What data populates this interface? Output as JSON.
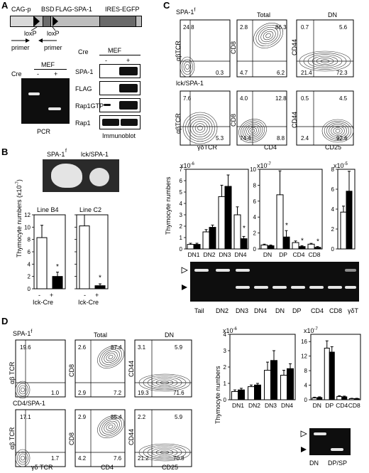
{
  "panelA": {
    "letter": "A",
    "construct": [
      "CAG-p",
      "BSD",
      "FLAG-SPA-1",
      "IRES-EGFP"
    ],
    "loxp": [
      "loxP",
      "loxP"
    ],
    "primer": [
      "primer",
      "primer"
    ],
    "pcr": {
      "header": "MEF",
      "cre_label": "Cre",
      "lanes": [
        "-",
        "+"
      ],
      "caption": "PCR"
    },
    "blot": {
      "header": "MEF",
      "cre_label": "Cre",
      "lanes": [
        "-",
        "+"
      ],
      "rows": [
        "SPA-1",
        "FLAG",
        "Rap1GTP",
        "Rap1"
      ],
      "caption": "Immunoblot"
    }
  },
  "panelB": {
    "letter": "B",
    "photo_labels": [
      "SPA-1",
      "f",
      "lck/SPA-1"
    ],
    "ylabel": "Thymocyte numbers (x10",
    "ylabel_exp": "-7",
    "ylabel_end": ")",
    "xcaption": "Ick-Cre",
    "lanes": [
      "-",
      "+"
    ],
    "star": "*"
  },
  "panelC": {
    "letter": "C",
    "row_labels": [
      "SPA-1",
      "f",
      "lck/SPA-1"
    ],
    "col_titles": [
      "Total",
      "DN"
    ],
    "axes": {
      "y1": "αβTCR",
      "x1": "γδTCR",
      "y2": "CD8",
      "x2": "CD4",
      "y3": "CD44",
      "x3": "CD25"
    },
    "quads": [
      [
        "24.8",
        "0.3"
      ],
      [
        "2.8",
        "86.3",
        "4.7",
        "6.2"
      ],
      [
        "0.7",
        "5.6",
        "21.4",
        "72.3"
      ],
      [
        "7.6",
        "5.3"
      ],
      [
        "4.0",
        "12.8",
        "74.4",
        "8.8"
      ],
      [
        "0.5",
        "4.5",
        "2.4",
        "92.6"
      ]
    ],
    "ylabel": "Thymocyte numbers",
    "scales": [
      "x10",
      "-6",
      "x10",
      "-7",
      "x10",
      "-5"
    ],
    "gel_lanes": [
      "Tail",
      "DN2",
      "DN3",
      "DN4",
      "DN",
      "DP",
      "CD4",
      "CD8",
      "γδT"
    ],
    "star": "*"
  },
  "panelD": {
    "letter": "D",
    "row_labels": [
      "SPA-1",
      "f",
      "CD4/SPA-1"
    ],
    "col_titles": [
      "Total",
      "DN"
    ],
    "axes": {
      "y1": "αβ TCR",
      "x1": "γδ TCR",
      "y2": "CD8",
      "x2": "CD4",
      "y3": "CD44",
      "x3": "CD25"
    },
    "quads": [
      [
        "19.6",
        "1.0"
      ],
      [
        "2.6",
        "87.4",
        "2.9",
        "7.2"
      ],
      [
        "3.1",
        "5.9",
        "19.3",
        "71.6"
      ],
      [
        "17.1",
        "1.7"
      ],
      [
        "2.9",
        "85.4",
        "4.2",
        "7.6"
      ],
      [
        "2.2",
        "5.9",
        "21.2",
        "70.8"
      ]
    ],
    "ylabel": "Thymocyte numbers",
    "scales": [
      "x10",
      "-6",
      "x10",
      "-7"
    ],
    "gel_lanes": [
      "DN",
      "DP/SP"
    ]
  },
  "chart_data": [
    {
      "type": "bar",
      "categories": [
        "Line B4 −",
        "Line B4 +"
      ],
      "values": [
        8.3,
        2.0
      ],
      "ylim": [
        0,
        12
      ],
      "yticks": [
        0,
        2,
        4,
        6,
        8,
        10,
        12
      ]
    },
    {
      "type": "bar",
      "categories": [
        "Line C2 −",
        "Line C2 +"
      ],
      "values": [
        10.2,
        0.5
      ],
      "ylim": [
        0,
        12
      ],
      "yticks": [
        0,
        2,
        4,
        6,
        8,
        10,
        12
      ]
    },
    {
      "type": "bar",
      "categories": [
        "DN1",
        "DN2",
        "DN3",
        "DN4"
      ],
      "series": [
        {
          "values": [
            0.4,
            1.5,
            4.6,
            3.0
          ]
        },
        {
          "values": [
            0.4,
            1.9,
            5.5,
            0.9
          ]
        }
      ],
      "ylim": [
        0,
        7
      ],
      "yticks": [
        0,
        1,
        2,
        3,
        4,
        5,
        6,
        7
      ]
    },
    {
      "type": "bar",
      "categories": [
        "DN",
        "DP",
        "CD4",
        "CD8"
      ],
      "series": [
        {
          "values": [
            0.5,
            6.8,
            0.8,
            0.6
          ]
        },
        {
          "values": [
            0.4,
            1.5,
            0.3,
            0.2
          ]
        }
      ],
      "ylim": [
        0,
        10
      ],
      "yticks": [
        0,
        2,
        4,
        6,
        8,
        10
      ]
    },
    {
      "type": "bar",
      "categories": [
        "γδT"
      ],
      "series": [
        {
          "values": [
            3.7
          ]
        },
        {
          "values": [
            5.8
          ]
        }
      ],
      "ylim": [
        0,
        8
      ],
      "yticks": [
        0,
        2,
        4,
        6,
        8
      ]
    },
    {
      "type": "bar",
      "categories": [
        "DN1",
        "DN2",
        "DN3",
        "DN4"
      ],
      "series": [
        {
          "values": [
            0.5,
            0.8,
            1.8,
            1.5
          ]
        },
        {
          "values": [
            0.6,
            0.9,
            2.4,
            1.9
          ]
        }
      ],
      "ylim": [
        0,
        4
      ],
      "yticks": [
        0,
        1,
        2,
        3,
        4
      ]
    },
    {
      "type": "bar",
      "categories": [
        "DN",
        "DP",
        "CD4",
        "CD8"
      ],
      "series": [
        {
          "values": [
            0.5,
            14.2,
            0.9,
            0.3
          ]
        },
        {
          "values": [
            0.6,
            13.1,
            0.8,
            0.3
          ]
        }
      ],
      "ylim": [
        0,
        18
      ],
      "yticks": [
        0,
        4,
        8,
        12,
        16
      ]
    }
  ]
}
